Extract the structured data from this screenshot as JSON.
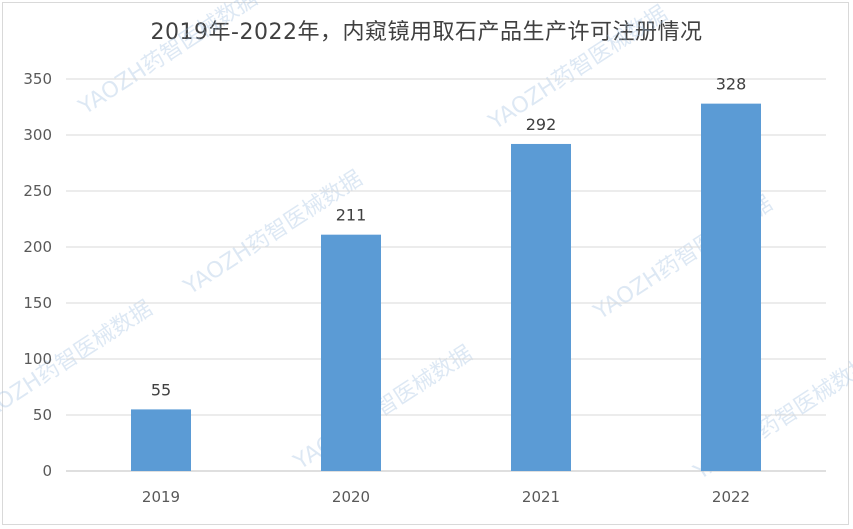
{
  "chart_data": {
    "type": "bar",
    "title": "2019年-2022年，内窥镜用取石产品生产许可注册情况",
    "categories": [
      "2019",
      "2020",
      "2021",
      "2022"
    ],
    "values": [
      55,
      211,
      292,
      328
    ],
    "data_labels": [
      "55",
      "211",
      "292",
      "328"
    ],
    "xlabel": "",
    "ylabel": "",
    "ylim": [
      0,
      350
    ],
    "yticks": [
      "0",
      "50",
      "100",
      "150",
      "200",
      "250",
      "300",
      "350"
    ],
    "grid": true,
    "legend": "none",
    "bar_color": "#5b9bd5"
  },
  "watermark": "YAOZH药智医械数据"
}
